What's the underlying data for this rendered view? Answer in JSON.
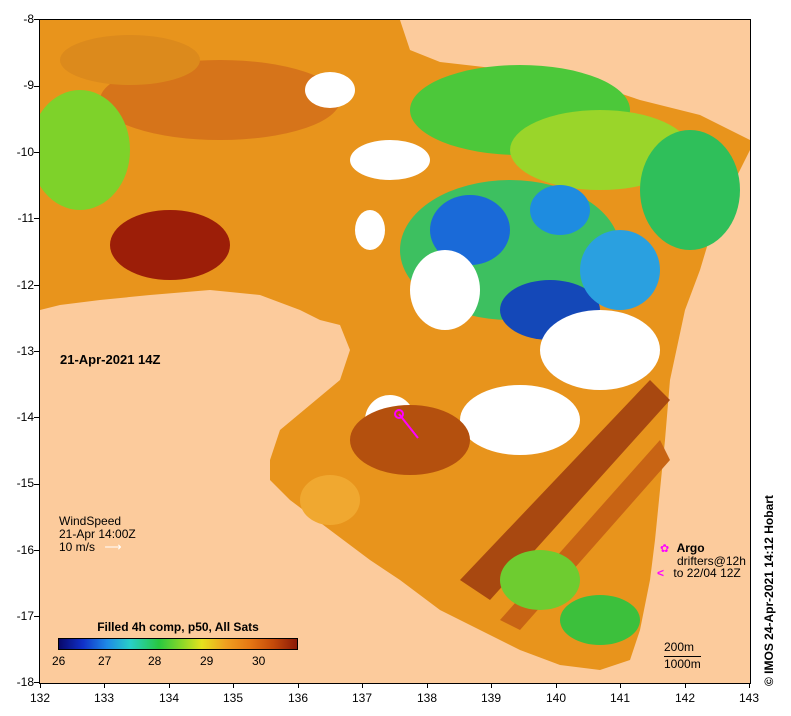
{
  "map": {
    "date_label": "21-Apr-2021 14Z",
    "x_ticks": [
      "132",
      "133",
      "134",
      "135",
      "136",
      "137",
      "138",
      "139",
      "140",
      "141",
      "142",
      "143"
    ],
    "y_ticks": [
      "-8",
      "-9",
      "-10",
      "-11",
      "-12",
      "-13",
      "-14",
      "-15",
      "-16",
      "-17",
      "-18"
    ],
    "x_range": [
      132,
      143
    ],
    "y_range": [
      -8,
      -18
    ],
    "land_color": "#fccb9c",
    "nodata_color": "#ffffff"
  },
  "wind": {
    "title": "WindSpeed",
    "time": "21-Apr 14:00Z",
    "scale": "10 m/s",
    "arrow": "⟶"
  },
  "legend": {
    "argo": "Argo",
    "drifters": "drifters@12h",
    "to": "to 22/04 12Z"
  },
  "depth": {
    "c200": "200m",
    "c1000": "1000m"
  },
  "colorbar": {
    "title": "Filled 4h comp, p50, All Sats",
    "ticks": [
      "26",
      "27",
      "28",
      "29",
      "30"
    ],
    "tick_values": [
      26,
      27,
      28,
      29,
      30
    ]
  },
  "credit": "©  IMOS 24-Apr-2021 14:12 Hobart"
}
